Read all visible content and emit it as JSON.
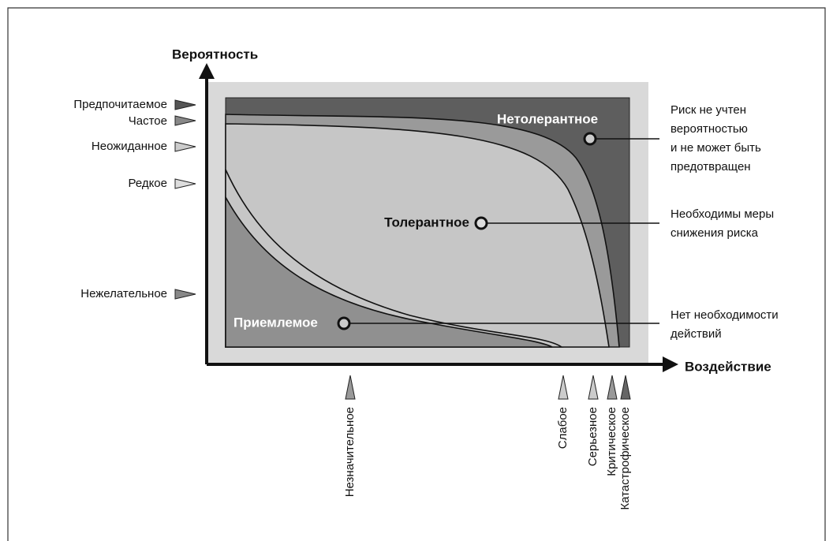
{
  "axes": {
    "y_title": "Вероятность",
    "x_title": "Воздействие"
  },
  "likelihood_levels": [
    "Предпочитаемое",
    "Частое",
    "Неожиданное",
    "Редкое",
    "Нежелательное"
  ],
  "impact_levels": [
    "Незначительное",
    "Слабое",
    "Серьезное",
    "Критическое",
    "Катастрофическое"
  ],
  "zones": [
    "Нетолерантное",
    "Толерантное",
    "Приемлемое"
  ],
  "notes": [
    [
      "Риск не учтен",
      "вероятностью",
      "и не может быть",
      "предотвращен"
    ],
    [
      "Необходимы меры",
      "снижения риска"
    ],
    [
      "Нет необходимости",
      "действий"
    ]
  ]
}
